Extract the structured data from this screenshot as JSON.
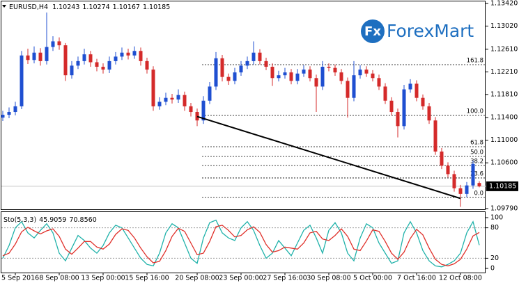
{
  "chart_data": {
    "type": "candlestick",
    "title": "EURUSD,H4",
    "logo": {
      "icon": "Fx",
      "text": "ForexMart",
      "color": "#1e6fc0"
    },
    "colors": {
      "up": "#1f4fd1",
      "down": "#d42a2a"
    },
    "categories": [
      null,
      null,
      "5 Sep 2016",
      null,
      null,
      null,
      null,
      null,
      null,
      "8 Sep 08:00",
      null,
      null,
      null,
      null,
      null,
      null,
      "13 Sep 00:00",
      null,
      null,
      null,
      null,
      null,
      null,
      "15 Sep 16:00",
      null,
      null,
      null,
      null,
      null,
      null,
      null,
      "20 Sep 08:00",
      null,
      null,
      null,
      null,
      null,
      null,
      "23 Sep 00:00",
      null,
      null,
      null,
      null,
      null,
      null,
      "27 Sep 16:00",
      null,
      null,
      null,
      null,
      null,
      null,
      "30 Sep 08:00",
      null,
      null,
      null,
      null,
      null,
      null,
      "5 Oct 00:00",
      null,
      null,
      null,
      null,
      null,
      null,
      "7 Oct 16:00",
      null,
      null,
      null,
      null,
      null,
      null,
      "12 Oct 08:00",
      null,
      null,
      null
    ],
    "ohlc": [
      [
        1.114,
        1.1152,
        1.1134,
        1.1145
      ],
      [
        1.1145,
        1.1158,
        1.1139,
        1.115
      ],
      [
        1.115,
        1.1168,
        1.1144,
        1.116
      ],
      [
        1.116,
        1.1258,
        1.1155,
        1.125
      ],
      [
        1.125,
        1.1262,
        1.1235,
        1.1242
      ],
      [
        1.1242,
        1.1266,
        1.1236,
        1.1255
      ],
      [
        1.1255,
        1.1263,
        1.1232,
        1.124
      ],
      [
        1.124,
        1.1326,
        1.1234,
        1.1265
      ],
      [
        1.1265,
        1.1284,
        1.1258,
        1.1275
      ],
      [
        1.1275,
        1.1282,
        1.126,
        1.1268
      ],
      [
        1.1268,
        1.1272,
        1.1205,
        1.1215
      ],
      [
        1.1215,
        1.124,
        1.1209,
        1.1232
      ],
      [
        1.1232,
        1.1248,
        1.1226,
        1.124
      ],
      [
        1.124,
        1.1262,
        1.1234,
        1.1252
      ],
      [
        1.1252,
        1.1258,
        1.123,
        1.1238
      ],
      [
        1.1238,
        1.1244,
        1.1222,
        1.123
      ],
      [
        1.123,
        1.1236,
        1.1218,
        1.1225
      ],
      [
        1.1225,
        1.1248,
        1.1219,
        1.124
      ],
      [
        1.124,
        1.1256,
        1.1234,
        1.1248
      ],
      [
        1.1248,
        1.1264,
        1.1242,
        1.1255
      ],
      [
        1.1255,
        1.1262,
        1.1243,
        1.125
      ],
      [
        1.125,
        1.1266,
        1.1244,
        1.1258
      ],
      [
        1.1258,
        1.1264,
        1.1232,
        1.124
      ],
      [
        1.124,
        1.1246,
        1.1218,
        1.1225
      ],
      [
        1.1225,
        1.1231,
        1.1152,
        1.116
      ],
      [
        1.116,
        1.1176,
        1.1154,
        1.1168
      ],
      [
        1.1168,
        1.1184,
        1.1162,
        1.1175
      ],
      [
        1.1175,
        1.1182,
        1.1165,
        1.1172
      ],
      [
        1.1172,
        1.119,
        1.1166,
        1.118
      ],
      [
        1.118,
        1.1186,
        1.1152,
        1.116
      ],
      [
        1.116,
        1.1166,
        1.1142,
        1.115
      ],
      [
        1.115,
        1.1156,
        1.1125,
        1.1135
      ],
      [
        1.1135,
        1.1178,
        1.1129,
        1.117
      ],
      [
        1.117,
        1.1203,
        1.1164,
        1.1195
      ],
      [
        1.1195,
        1.1256,
        1.1189,
        1.1245
      ],
      [
        1.1245,
        1.1251,
        1.1204,
        1.1212
      ],
      [
        1.1212,
        1.1218,
        1.1198,
        1.1205
      ],
      [
        1.1205,
        1.1228,
        1.1199,
        1.122
      ],
      [
        1.122,
        1.124,
        1.1214,
        1.1232
      ],
      [
        1.1232,
        1.1248,
        1.1226,
        1.124
      ],
      [
        1.124,
        1.1275,
        1.1234,
        1.1255
      ],
      [
        1.1255,
        1.1261,
        1.1234,
        1.124
      ],
      [
        1.124,
        1.1246,
        1.1224,
        1.123
      ],
      [
        1.123,
        1.1236,
        1.1196,
        1.121
      ],
      [
        1.121,
        1.1223,
        1.1204,
        1.1215
      ],
      [
        1.1215,
        1.1228,
        1.1209,
        1.122
      ],
      [
        1.122,
        1.1226,
        1.1199,
        1.1205
      ],
      [
        1.1205,
        1.1226,
        1.1199,
        1.1218
      ],
      [
        1.1218,
        1.1233,
        1.1212,
        1.1225
      ],
      [
        1.1225,
        1.1231,
        1.1204,
        1.121
      ],
      [
        1.121,
        1.1216,
        1.115,
        1.1195
      ],
      [
        1.1195,
        1.124,
        1.1189,
        1.123
      ],
      [
        1.123,
        1.1236,
        1.1222,
        1.1228
      ],
      [
        1.1228,
        1.1234,
        1.1214,
        1.122
      ],
      [
        1.122,
        1.1226,
        1.1199,
        1.1205
      ],
      [
        1.1205,
        1.1211,
        1.114,
        1.1175
      ],
      [
        1.1175,
        1.124,
        1.1169,
        1.1215
      ],
      [
        1.1215,
        1.1233,
        1.1209,
        1.1225
      ],
      [
        1.1225,
        1.1231,
        1.1212,
        1.1218
      ],
      [
        1.1218,
        1.1224,
        1.1204,
        1.121
      ],
      [
        1.121,
        1.1216,
        1.1189,
        1.1195
      ],
      [
        1.1195,
        1.1201,
        1.1164,
        1.117
      ],
      [
        1.117,
        1.1176,
        1.1144,
        1.115
      ],
      [
        1.115,
        1.1156,
        1.1105,
        1.1125
      ],
      [
        1.1125,
        1.1198,
        1.1119,
        1.119
      ],
      [
        1.119,
        1.1208,
        1.1184,
        1.12
      ],
      [
        1.12,
        1.1206,
        1.1169,
        1.1175
      ],
      [
        1.1175,
        1.1181,
        1.1154,
        1.116
      ],
      [
        1.116,
        1.1166,
        1.1129,
        1.1135
      ],
      [
        1.1135,
        1.1141,
        1.1074,
        1.108
      ],
      [
        1.108,
        1.1086,
        1.1049,
        1.1055
      ],
      [
        1.1055,
        1.1061,
        1.1034,
        1.104
      ],
      [
        1.104,
        1.1046,
        1.1009,
        1.1015
      ],
      [
        1.1015,
        1.1021,
        1.0982,
        1.1005
      ],
      [
        1.1005,
        1.1026,
        1.0999,
        1.102
      ],
      [
        1.102,
        1.1064,
        1.1014,
        1.1058
      ],
      [
        1.10243,
        1.10274,
        1.10167,
        1.10185
      ]
    ],
    "ylim": [
      1.0979,
      1.1342
    ],
    "yticks": [
      {
        "value": 1.1342,
        "label": "1.13420"
      },
      {
        "value": 1.1302,
        "label": "1.13020"
      },
      {
        "value": 1.1261,
        "label": "1.12610"
      },
      {
        "value": 1.1221,
        "label": "1.12210"
      },
      {
        "value": 1.1181,
        "label": "1.11810"
      },
      {
        "value": 1.114,
        "label": "1.11400"
      },
      {
        "value": 1.11,
        "label": "1.11000"
      },
      {
        "value": 1.106,
        "label": "1.10600"
      },
      {
        "value": 1.0979,
        "label": "1.09790"
      }
    ],
    "fibonacci": [
      {
        "label": "161.8",
        "value": 1.12337
      },
      {
        "label": "100.0",
        "value": 1.11439
      },
      {
        "label": "61.8",
        "value": 1.10885
      },
      {
        "label": "50.0",
        "value": 1.10713
      },
      {
        "label": "38.2",
        "value": 1.10553
      },
      {
        "label": "23.6",
        "value": 1.10332
      },
      {
        "label": "0.0",
        "value": 1.09987
      }
    ],
    "trendline": {
      "from": {
        "index": 31,
        "price": 1.1142
      },
      "to": {
        "index": 73,
        "price": 1.0997
      }
    },
    "stochastic": {
      "title": "Sto(5,3,3)",
      "ylim": [
        0,
        100
      ],
      "yticks": [
        100,
        80,
        20,
        0
      ],
      "series": [
        {
          "color": "#20b2aa",
          "values": [
            20,
            45,
            80,
            92,
            70,
            60,
            75,
            88,
            70,
            30,
            15,
            40,
            65,
            55,
            40,
            30,
            45,
            70,
            85,
            80,
            60,
            40,
            20,
            8,
            5,
            30,
            70,
            88,
            80,
            50,
            20,
            10,
            60,
            90,
            95,
            70,
            60,
            55,
            80,
            92,
            75,
            45,
            20,
            30,
            55,
            40,
            25,
            50,
            75,
            85,
            60,
            30,
            75,
            90,
            70,
            30,
            15,
            60,
            88,
            80,
            50,
            30,
            10,
            15,
            70,
            92,
            70,
            35,
            15,
            5,
            3,
            8,
            15,
            30,
            70,
            92,
            45.9059
          ]
        },
        {
          "color": "#e0302a",
          "values": [
            25,
            30,
            48,
            72,
            81,
            74,
            68,
            74,
            78,
            63,
            38,
            28,
            40,
            53,
            53,
            42,
            38,
            48,
            67,
            78,
            75,
            60,
            40,
            23,
            11,
            14,
            35,
            63,
            79,
            73,
            50,
            27,
            30,
            53,
            82,
            85,
            75,
            62,
            65,
            76,
            82,
            71,
            47,
            32,
            35,
            42,
            40,
            38,
            50,
            70,
            73,
            58,
            55,
            65,
            78,
            63,
            38,
            35,
            54,
            76,
            73,
            53,
            30,
            18,
            32,
            59,
            77,
            66,
            40,
            18,
            8,
            5,
            9,
            18,
            38,
            64,
            70.856
          ],
          "value_labels": [
            null,
            null,
            null,
            null,
            null,
            null,
            null,
            null,
            null,
            null,
            null,
            null,
            null,
            null,
            null,
            null,
            null,
            null,
            null,
            null,
            null,
            null,
            null,
            null,
            null,
            null,
            null,
            null,
            null,
            null,
            null,
            null,
            null,
            null,
            null,
            null,
            null,
            null,
            null,
            null,
            null,
            null,
            null,
            null,
            null,
            null,
            null,
            null,
            null,
            null,
            null,
            null,
            null,
            null,
            null,
            null,
            null,
            null,
            null,
            null,
            null,
            null,
            null,
            null,
            null,
            null,
            null,
            null,
            null,
            null,
            null,
            null,
            null,
            null,
            null,
            null,
            "70.8560"
          ]
        }
      ]
    }
  }
}
